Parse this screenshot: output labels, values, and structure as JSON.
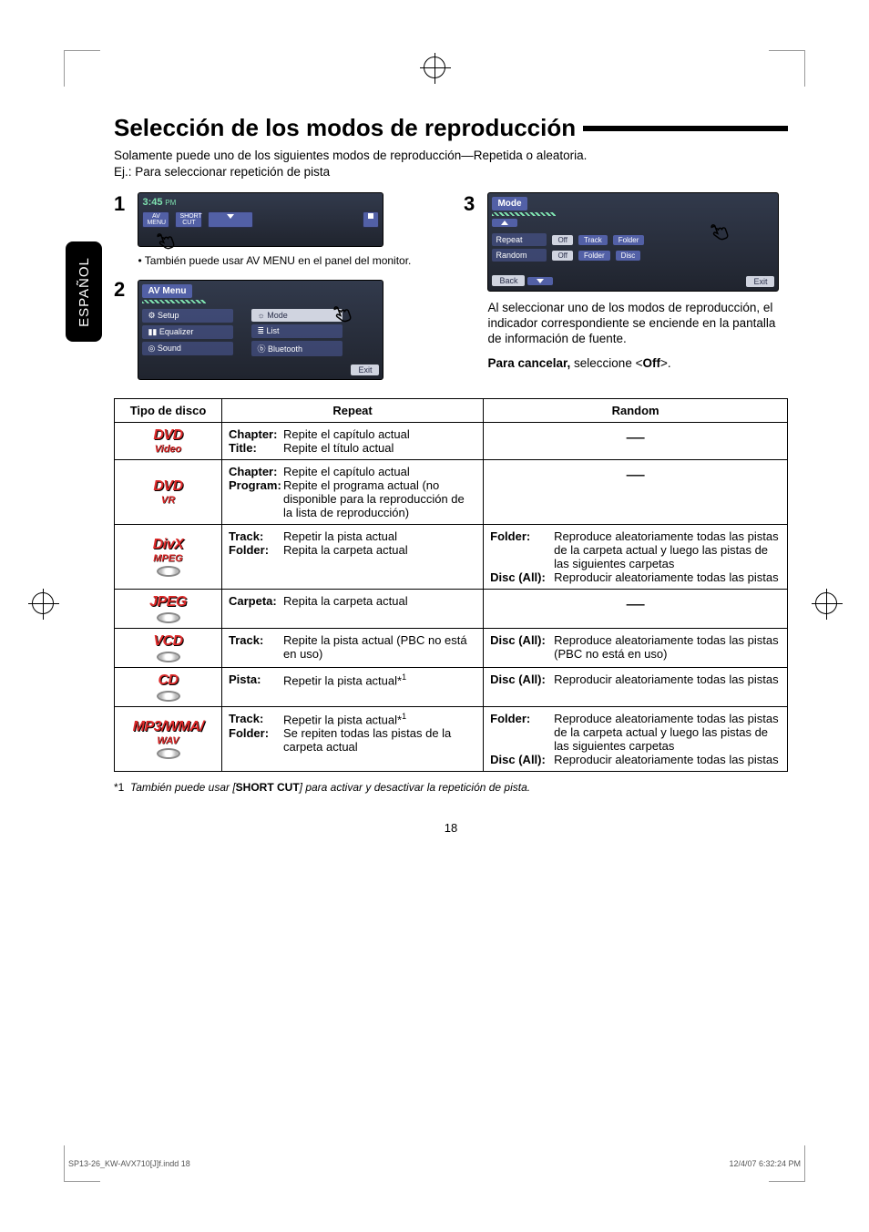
{
  "title": "Selección de los modos de reproducción",
  "intro1": "Solamente puede uno de los siguientes modos de reproducción—Repetida o aleatoria.",
  "intro2": "Ej.: Para seleccionar repetición de pista",
  "lang": "ESPAÑOL",
  "step1": {
    "num": "1",
    "time": "3:45",
    "ampm": "PM",
    "btn1": "AV MENU",
    "btn2": "SHORT CUT",
    "note": "También puede usar AV MENU en el panel del monitor."
  },
  "step2": {
    "num": "2",
    "title": "AV Menu",
    "left": [
      "Setup",
      "Equalizer",
      "Sound"
    ],
    "right": [
      "Mode",
      "List",
      "Bluetooth"
    ],
    "exit": "Exit"
  },
  "step3": {
    "num": "3",
    "title": "Mode",
    "rows": [
      {
        "label": "Repeat",
        "sel": "Off",
        "opts": [
          "Track",
          "Folder"
        ]
      },
      {
        "label": "Random",
        "sel": "Off",
        "opts": [
          "Folder",
          "Disc"
        ]
      }
    ],
    "back": "Back",
    "exit": "Exit",
    "para": "Al seleccionar uno de los modos de reproducción, el indicador correspondiente se enciende en la pantalla de información de fuente.",
    "cancel_label": "Para cancelar,",
    "cancel_text": " seleccione <",
    "cancel_off": "Off",
    "cancel_end": ">."
  },
  "table": {
    "headers": [
      "Tipo de disco",
      "Repeat",
      "Random"
    ],
    "rows": [
      {
        "logos": [
          "DVD",
          "Video"
        ],
        "repeat": [
          [
            "Chapter:",
            "Repite el capítulo actual"
          ],
          [
            "Title:",
            "Repite el título actual"
          ]
        ],
        "random": "—"
      },
      {
        "logos": [
          "DVD",
          "VR"
        ],
        "repeat": [
          [
            "Chapter:",
            "Repite el capítulo actual"
          ],
          [
            "Program:",
            "Repite el programa actual (no disponible para la reproducción de la lista de reproducción)"
          ]
        ],
        "random": "—"
      },
      {
        "logos": [
          "DivX",
          "MPEG"
        ],
        "disc": true,
        "repeat": [
          [
            "Track:",
            "Repetir la pista actual"
          ],
          [
            "Folder:",
            "Repita la carpeta actual"
          ]
        ],
        "random_kv": [
          [
            "Folder:",
            "Reproduce aleatoriamente todas las pistas de la carpeta actual y luego las pistas de las siguientes carpetas"
          ],
          [
            "Disc (All):",
            "Reproducir aleatoriamente todas las pistas"
          ]
        ]
      },
      {
        "logos": [
          "JPEG"
        ],
        "disc": true,
        "repeat": [
          [
            "Carpeta:",
            "Repita la carpeta actual"
          ]
        ],
        "random": "—"
      },
      {
        "logos": [
          "VCD"
        ],
        "disc": true,
        "repeat": [
          [
            "Track:",
            "Repite la pista actual (PBC no está en uso)"
          ]
        ],
        "random_kv": [
          [
            "Disc (All):",
            "Reproduce aleatoriamente todas las pistas (PBC no está en uso)"
          ]
        ]
      },
      {
        "logos": [
          "CD"
        ],
        "disc": true,
        "repeat_html": [
          [
            "Pista:",
            "Repetir la pista actual*1"
          ]
        ],
        "random_kv": [
          [
            "Disc (All):",
            "Reproducir aleatoriamente todas las pistas"
          ]
        ]
      },
      {
        "logos": [
          "MP3/WMA/",
          "WAV"
        ],
        "disc": true,
        "repeat_html": [
          [
            "Track:",
            "Repetir la pista actual*1"
          ],
          [
            "Folder:",
            "Se repiten todas las pistas de la carpeta actual"
          ]
        ],
        "random_kv": [
          [
            "Folder:",
            "Reproduce aleatoriamente todas las pistas de la carpeta actual y luego las pistas de las siguientes carpetas"
          ],
          [
            "Disc (All):",
            "Reproducir aleatoriamente todas las pistas"
          ]
        ]
      }
    ]
  },
  "footnote_prefix": "*1",
  "footnote": "También puede usar [",
  "footnote_bold": "SHORT CUT",
  "footnote_end": "] para activar y desactivar la repetición de pista.",
  "pagenum": "18",
  "footer_left": "SP13-26_KW-AVX710[J]f.indd   18",
  "footer_right": "12/4/07   6:32:24 PM"
}
